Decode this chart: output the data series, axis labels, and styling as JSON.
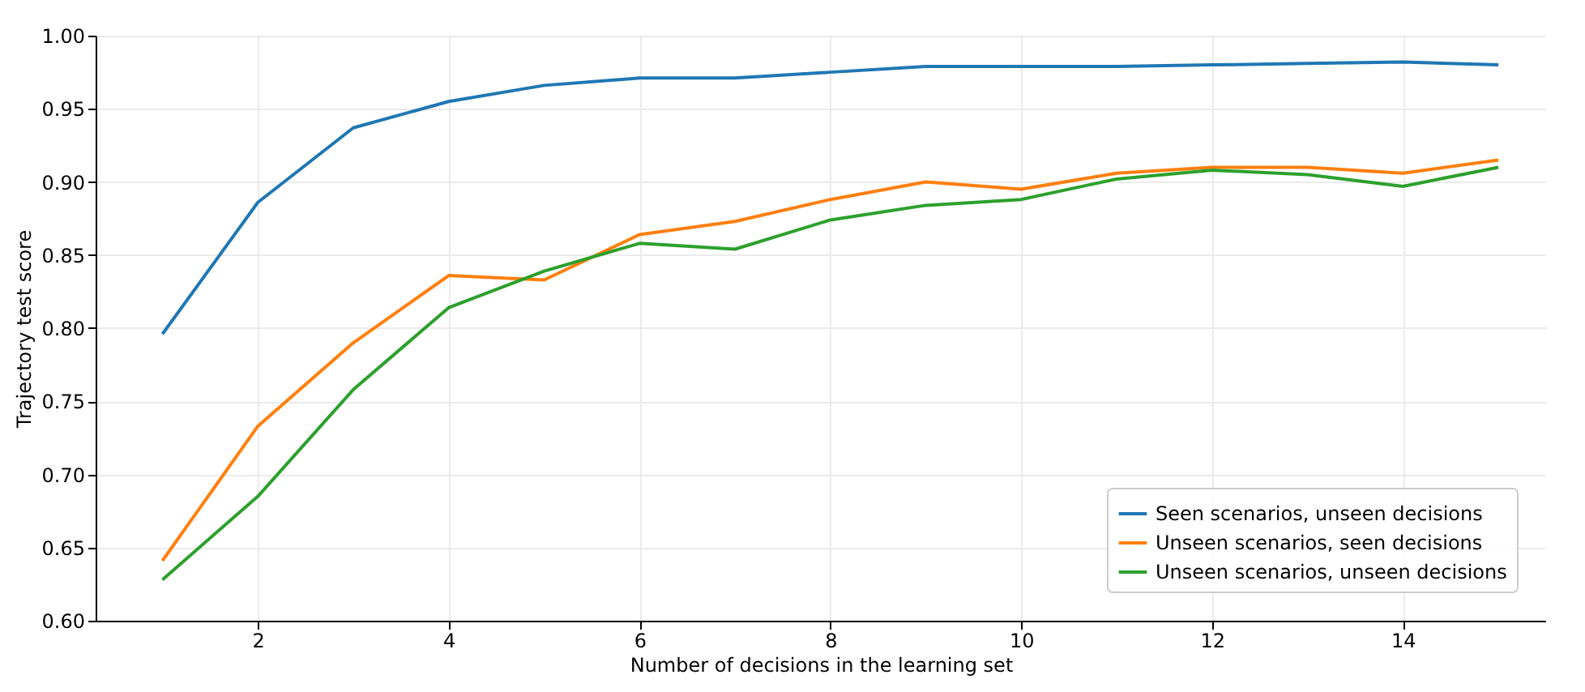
{
  "chart_data": {
    "type": "line",
    "xlabel": "Number of decisions in the learning set",
    "ylabel": "Trajectory test score",
    "x": [
      1,
      2,
      3,
      4,
      5,
      6,
      7,
      8,
      9,
      10,
      11,
      12,
      13,
      14,
      15
    ],
    "series": [
      {
        "name": "Seen scenarios, unseen decisions",
        "color": "#1f77b4",
        "values": [
          0.796,
          0.886,
          0.937,
          0.955,
          0.966,
          0.971,
          0.971,
          0.975,
          0.979,
          0.979,
          0.979,
          0.98,
          0.981,
          0.982,
          0.98
        ]
      },
      {
        "name": "Unseen scenarios, seen decisions",
        "color": "#ff7f0e",
        "values": [
          0.641,
          0.733,
          0.79,
          0.836,
          0.833,
          0.864,
          0.873,
          0.888,
          0.9,
          0.895,
          0.906,
          0.91,
          0.91,
          0.906,
          0.915
        ]
      },
      {
        "name": "Unseen scenarios, unseen decisions",
        "color": "#2ca02c",
        "values": [
          0.628,
          0.685,
          0.758,
          0.814,
          0.839,
          0.858,
          0.854,
          0.874,
          0.884,
          0.888,
          0.902,
          0.908,
          0.905,
          0.897,
          0.91
        ]
      }
    ],
    "xlim": [
      0.3,
      15.5
    ],
    "xticks": [
      2,
      4,
      6,
      8,
      10,
      12,
      14
    ],
    "ylim": [
      0.6,
      1.0
    ],
    "yticks": [
      {
        "value": 0.6,
        "label": "0.60"
      },
      {
        "value": 0.65,
        "label": "0.65"
      },
      {
        "value": 0.7,
        "label": "0.70"
      },
      {
        "value": 0.75,
        "label": "0.75"
      },
      {
        "value": 0.8,
        "label": "0.80"
      },
      {
        "value": 0.85,
        "label": "0.85"
      },
      {
        "value": 0.9,
        "label": "0.90"
      },
      {
        "value": 0.95,
        "label": "0.95"
      },
      {
        "value": 1.0,
        "label": "1.00"
      }
    ],
    "grid": true,
    "legend": "bottom right",
    "line_style": "solid"
  }
}
